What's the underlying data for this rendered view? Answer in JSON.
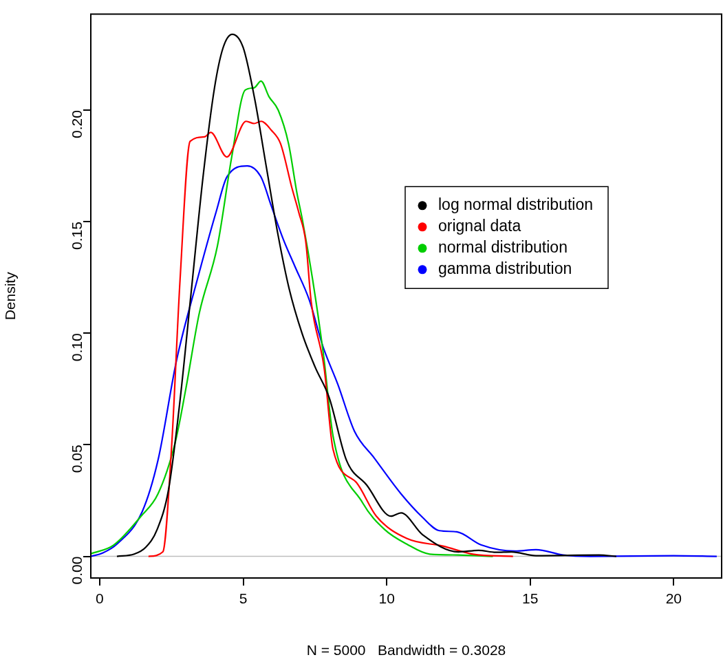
{
  "chart_data": {
    "type": "line",
    "xlabel": "N = 5000   Bandwidth = 0.3028",
    "ylabel": "Density",
    "xlim": [
      -0.31,
      21.67
    ],
    "ylim": [
      -0.0097,
      0.243
    ],
    "xticks": [
      0,
      5,
      10,
      15,
      20
    ],
    "yticks": [
      {
        "value": 0,
        "label": "0.00"
      },
      {
        "value": 0.05,
        "label": "0.05"
      },
      {
        "value": 0.1,
        "label": "0.10"
      },
      {
        "value": 0.15,
        "label": "0.15"
      },
      {
        "value": 0.2,
        "label": "0.20"
      }
    ],
    "grid": false,
    "legend": "right",
    "marker": "none",
    "line_style": "solid",
    "ref_lines": [
      {
        "axis": "y",
        "value": 0,
        "color": "#bebebe"
      }
    ],
    "series": [
      {
        "name": "log normal distribution",
        "color": "#000000",
        "x": [
          0.6,
          1.2,
          1.6,
          2.0,
          2.4,
          2.8,
          3.2,
          3.6,
          4.0,
          4.3,
          4.62,
          5.0,
          5.4,
          5.8,
          6.2,
          6.6,
          7.05,
          7.5,
          8.0,
          8.6,
          9.3,
          10.15,
          10.5,
          11.25,
          12.5,
          13.2,
          13.8,
          14.35,
          15.2,
          17.4,
          18.0
        ],
        "values": [
          0,
          0.001,
          0.004,
          0.012,
          0.03,
          0.07,
          0.12,
          0.17,
          0.21,
          0.228,
          0.234,
          0.228,
          0.205,
          0.175,
          0.145,
          0.12,
          0.1,
          0.085,
          0.071,
          0.043,
          0.032,
          0.018,
          0.0195,
          0.0097,
          0.002,
          0.0027,
          0.0018,
          0.002,
          0.0003,
          0.0006,
          0
        ]
      },
      {
        "name": "orignal data",
        "color": "#ff0000",
        "x": [
          1.7,
          2.2,
          2.5,
          2.8,
          3.15,
          3.65,
          3.87,
          4.43,
          5.1,
          5.38,
          5.62,
          5.98,
          6.3,
          6.7,
          6.94,
          7.18,
          7.37,
          7.82,
          8.13,
          8.95,
          9.64,
          10.7,
          11.96,
          13.0,
          14.4
        ],
        "values": [
          0,
          0.002,
          0.048,
          0.124,
          0.186,
          0.188,
          0.19,
          0.179,
          0.195,
          0.194,
          0.195,
          0.191,
          0.185,
          0.165,
          0.154,
          0.141,
          0.114,
          0.0845,
          0.048,
          0.033,
          0.018,
          0.008,
          0.0046,
          0.001,
          0
        ]
      },
      {
        "name": "normal distribution",
        "color": "#00cd00",
        "x": [
          -0.3,
          0.48,
          1.44,
          2.03,
          2.63,
          3.0,
          3.47,
          4.1,
          4.6,
          5.07,
          5.38,
          5.62,
          5.9,
          6.22,
          6.58,
          6.87,
          7.06,
          7.42,
          7.8,
          8.13,
          9.16,
          9.93,
          10.7,
          11.5,
          12.5,
          13.7
        ],
        "values": [
          0.0012,
          0.005,
          0.018,
          0.028,
          0.051,
          0.075,
          0.109,
          0.139,
          0.179,
          0.209,
          0.21,
          0.213,
          0.206,
          0.2,
          0.185,
          0.163,
          0.151,
          0.124,
          0.09,
          0.054,
          0.024,
          0.012,
          0.0055,
          0.001,
          0.0006,
          0
        ]
      },
      {
        "name": "gamma distribution",
        "color": "#0000ff",
        "x": [
          -0.3,
          0.1,
          0.6,
          1.48,
          2.03,
          2.68,
          3.4,
          4.07,
          4.43,
          5.14,
          5.62,
          5.98,
          6.4,
          6.8,
          7.3,
          7.78,
          8.3,
          8.88,
          9.57,
          10.5,
          11.24,
          11.84,
          12.44,
          13.28,
          14.47,
          15.2,
          16.15,
          17.1,
          20.0,
          21.5
        ],
        "values": [
          0,
          0.0015,
          0.0055,
          0.02,
          0.043,
          0.088,
          0.124,
          0.155,
          0.17,
          0.175,
          0.17,
          0.157,
          0.142,
          0.13,
          0.115,
          0.094,
          0.077,
          0.056,
          0.044,
          0.028,
          0.0176,
          0.0115,
          0.011,
          0.0052,
          0.0024,
          0.003,
          0.0006,
          0,
          0.0003,
          0
        ]
      }
    ]
  }
}
